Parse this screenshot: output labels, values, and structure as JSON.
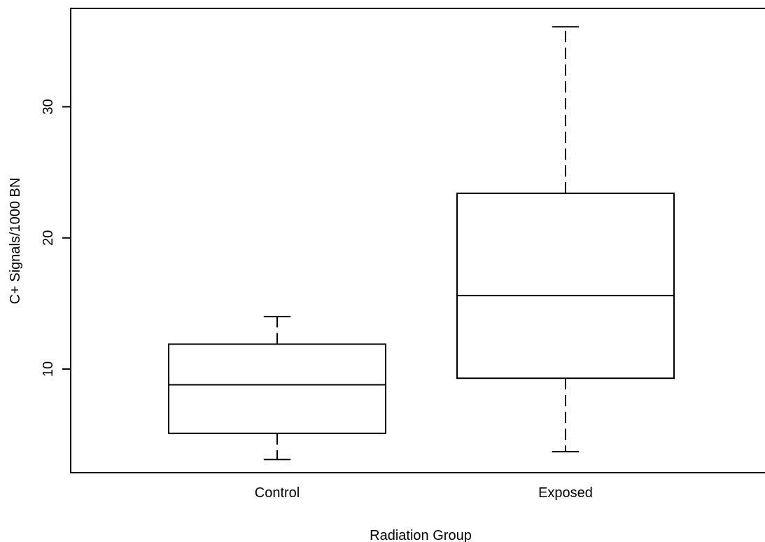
{
  "chart_data": {
    "type": "box",
    "title": "",
    "xlabel": "Radiation Group",
    "ylabel": "C+ Signals/1000 BN",
    "categories": [
      "Control",
      "Exposed"
    ],
    "boxes": [
      {
        "category": "Control",
        "whisker_low": 3.1,
        "q1": 5.1,
        "median": 8.8,
        "q3": 11.9,
        "whisker_high": 14.0
      },
      {
        "category": "Exposed",
        "whisker_low": 3.7,
        "q1": 9.3,
        "median": 15.6,
        "q3": 23.4,
        "whisker_high": 36.1
      }
    ],
    "yticks": [
      10,
      20,
      30
    ],
    "ytick_labels": [
      "10",
      "20",
      "30"
    ],
    "ylim": [
      2.1,
      37.5
    ],
    "grid": false,
    "legend": "none"
  }
}
